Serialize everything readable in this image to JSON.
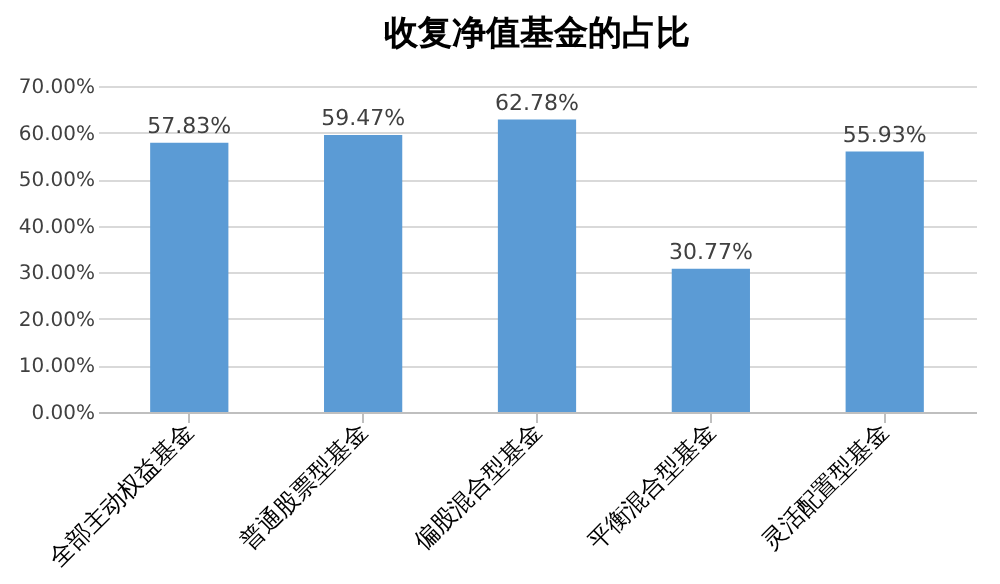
{
  "chart_data": {
    "type": "bar",
    "title": "收复净值基金的占比",
    "categories": [
      "全部主动权益基金",
      "普通股票型基金",
      "偏股混合型基金",
      "平衡混合型基金",
      "灵活配置型基金"
    ],
    "values": [
      57.83,
      59.47,
      62.78,
      30.77,
      55.93
    ],
    "value_labels": [
      "57.83%",
      "59.47%",
      "62.78%",
      "30.77%",
      "55.93%"
    ],
    "color": "#5b9bd5",
    "ylim": [
      0,
      70
    ],
    "yticks": [
      {
        "value": 0,
        "label": "0.00%"
      },
      {
        "value": 10,
        "label": "10.00%"
      },
      {
        "value": 20,
        "label": "20.00%"
      },
      {
        "value": 30,
        "label": "30.00%"
      },
      {
        "value": 40,
        "label": "40.00%"
      },
      {
        "value": 50,
        "label": "50.00%"
      },
      {
        "value": 60,
        "label": "60.00%"
      },
      {
        "value": 70,
        "label": "70.00%"
      }
    ],
    "grid": "y"
  }
}
